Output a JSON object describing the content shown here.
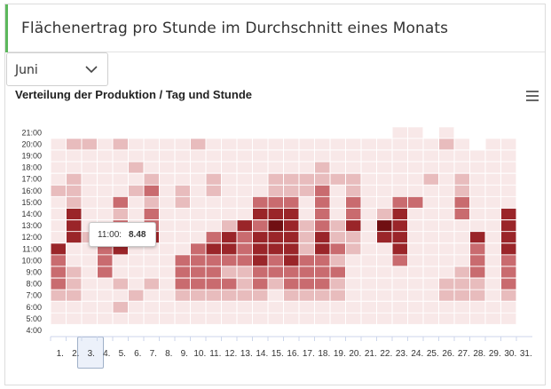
{
  "header": {
    "title": "Flächenertrag pro Stunde im Durchschnitt eines Monats"
  },
  "month_select": {
    "value": "Juni"
  },
  "tooltip": {
    "time": "11:00:",
    "value": "8.48"
  },
  "chart_data": {
    "type": "heatmap",
    "title": "Verteilung der Produktion / Tag und Stunde",
    "x_categories": [
      "1.",
      "2.",
      "3.",
      "4.",
      "5.",
      "6.",
      "7.",
      "8.",
      "9.",
      "10.",
      "11.",
      "12.",
      "13.",
      "14.",
      "15.",
      "16.",
      "17.",
      "18.",
      "19.",
      "20.",
      "21.",
      "22.",
      "23.",
      "24.",
      "25.",
      "26.",
      "27.",
      "28.",
      "29.",
      "30.",
      "31."
    ],
    "y_categories": [
      "4:00",
      "5:00",
      "6:00",
      "7:00",
      "8:00",
      "9:00",
      "10:00",
      "11:00",
      "12:00",
      "13:00",
      "14:00",
      "15:00",
      "16:00",
      "17:00",
      "18:00",
      "19:00",
      "20:00",
      "21:00"
    ],
    "levels": [
      [
        0,
        0,
        0,
        0,
        0,
        0,
        0,
        0,
        0,
        0,
        0,
        0,
        0,
        0,
        0,
        0,
        0,
        0,
        0,
        0,
        0,
        0,
        0,
        0,
        0,
        0,
        0,
        0,
        0,
        0,
        0
      ],
      [
        1,
        1,
        1,
        1,
        1,
        1,
        1,
        1,
        1,
        1,
        1,
        1,
        1,
        1,
        1,
        1,
        1,
        1,
        1,
        1,
        1,
        1,
        1,
        1,
        1,
        1,
        1,
        1,
        1,
        1,
        0
      ],
      [
        1,
        1,
        1,
        1,
        2,
        1,
        1,
        1,
        1,
        1,
        1,
        1,
        1,
        1,
        1,
        1,
        1,
        1,
        1,
        1,
        1,
        1,
        1,
        1,
        1,
        1,
        1,
        1,
        1,
        1,
        0
      ],
      [
        2,
        2,
        1,
        1,
        1,
        2,
        1,
        1,
        2,
        2,
        2,
        2,
        2,
        2,
        1,
        2,
        2,
        2,
        2,
        1,
        1,
        1,
        1,
        1,
        1,
        2,
        2,
        2,
        1,
        2,
        0
      ],
      [
        3,
        2,
        1,
        1,
        2,
        1,
        2,
        1,
        3,
        3,
        3,
        3,
        2,
        3,
        2,
        3,
        3,
        3,
        2,
        1,
        1,
        1,
        1,
        1,
        1,
        2,
        2,
        2,
        1,
        3,
        0
      ],
      [
        3,
        2,
        1,
        3,
        1,
        1,
        1,
        1,
        3,
        3,
        3,
        2,
        2,
        3,
        3,
        3,
        3,
        3,
        3,
        1,
        1,
        1,
        1,
        1,
        1,
        1,
        2,
        3,
        1,
        3,
        0
      ],
      [
        3,
        1,
        1,
        3,
        1,
        1,
        1,
        1,
        3,
        3,
        3,
        3,
        3,
        4,
        3,
        4,
        3,
        3,
        2,
        1,
        1,
        1,
        3,
        1,
        1,
        1,
        1,
        3,
        1,
        3,
        0
      ],
      [
        4,
        1,
        1,
        3,
        4,
        1,
        1,
        1,
        1,
        3,
        4,
        4,
        3,
        4,
        4,
        4,
        2,
        4,
        3,
        2,
        1,
        1,
        4,
        1,
        1,
        1,
        1,
        3,
        1,
        4,
        0
      ],
      [
        1,
        4,
        2,
        1,
        1,
        1,
        4,
        1,
        1,
        1,
        3,
        4,
        3,
        4,
        4,
        4,
        2,
        4,
        2,
        2,
        1,
        4,
        4,
        1,
        1,
        1,
        1,
        4,
        1,
        4,
        0
      ],
      [
        1,
        4,
        1,
        1,
        3,
        1,
        3,
        1,
        1,
        1,
        1,
        2,
        4,
        3,
        5,
        4,
        2,
        3,
        2,
        4,
        1,
        5,
        4,
        1,
        1,
        1,
        1,
        1,
        1,
        4,
        0
      ],
      [
        1,
        4,
        1,
        1,
        2,
        1,
        3,
        1,
        1,
        1,
        1,
        1,
        1,
        4,
        4,
        4,
        1,
        3,
        1,
        3,
        1,
        2,
        4,
        1,
        1,
        1,
        3,
        1,
        1,
        4,
        0
      ],
      [
        1,
        2,
        1,
        1,
        3,
        1,
        2,
        1,
        2,
        1,
        1,
        1,
        1,
        3,
        3,
        3,
        1,
        3,
        1,
        3,
        1,
        1,
        3,
        3,
        1,
        1,
        3,
        1,
        1,
        1,
        0
      ],
      [
        2,
        2,
        1,
        1,
        1,
        2,
        3,
        1,
        2,
        1,
        2,
        1,
        1,
        1,
        2,
        2,
        2,
        3,
        1,
        2,
        1,
        1,
        1,
        1,
        1,
        1,
        2,
        1,
        1,
        1,
        0
      ],
      [
        1,
        2,
        1,
        1,
        1,
        1,
        2,
        1,
        1,
        1,
        2,
        1,
        1,
        1,
        2,
        2,
        2,
        2,
        2,
        2,
        1,
        1,
        1,
        1,
        2,
        1,
        2,
        1,
        1,
        1,
        0
      ],
      [
        1,
        1,
        1,
        1,
        1,
        2,
        1,
        1,
        1,
        1,
        1,
        1,
        1,
        1,
        1,
        1,
        1,
        2,
        1,
        1,
        1,
        1,
        1,
        1,
        1,
        1,
        1,
        1,
        1,
        1,
        0
      ],
      [
        1,
        1,
        1,
        1,
        1,
        1,
        1,
        1,
        1,
        1,
        1,
        1,
        1,
        1,
        1,
        1,
        1,
        1,
        1,
        1,
        1,
        1,
        1,
        1,
        1,
        1,
        1,
        1,
        1,
        1,
        0
      ],
      [
        1,
        2,
        2,
        1,
        2,
        1,
        1,
        1,
        1,
        2,
        1,
        1,
        1,
        1,
        1,
        1,
        1,
        1,
        1,
        1,
        1,
        1,
        1,
        1,
        1,
        2,
        1,
        0,
        1,
        1,
        0
      ],
      [
        0,
        0,
        0,
        0,
        0,
        0,
        0,
        0,
        0,
        0,
        0,
        0,
        0,
        0,
        0,
        0,
        0,
        0,
        0,
        0,
        0,
        0,
        1,
        1,
        0,
        1,
        0,
        0,
        0,
        0,
        0
      ]
    ],
    "color_scale": [
      "#ffffff",
      "#f8e8e8",
      "#e8bcbd",
      "#c96b6f",
      "#9a2529",
      "#700f12"
    ],
    "highlight": {
      "x": "3.",
      "y": "11:00",
      "value": 8.48
    }
  }
}
